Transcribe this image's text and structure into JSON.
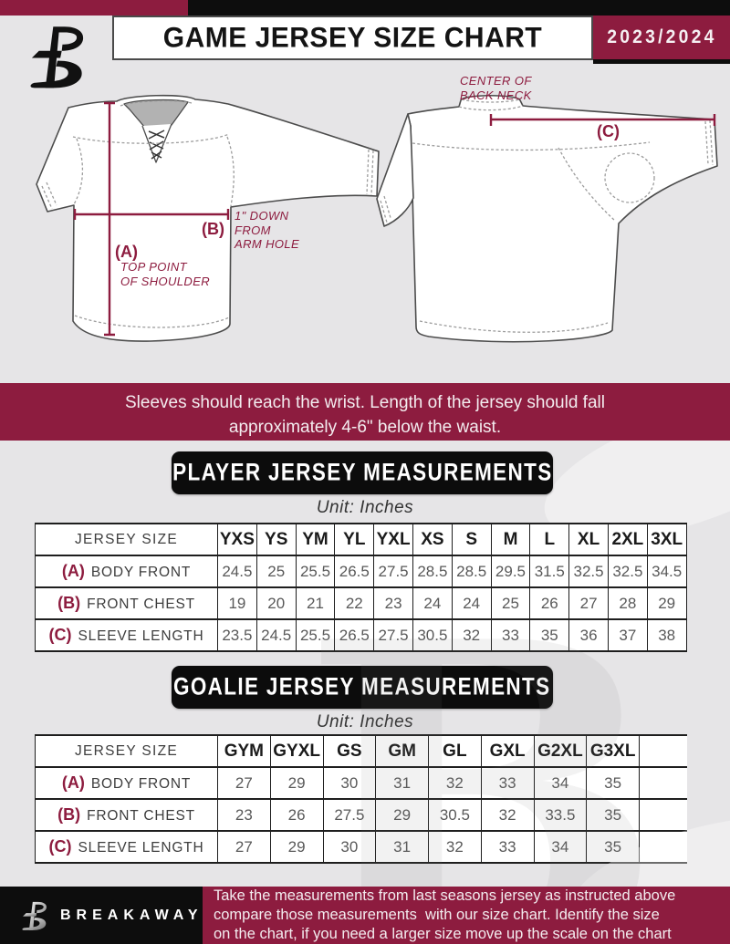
{
  "header": {
    "title": "GAME JERSEY SIZE CHART",
    "season": "2023/2024",
    "logo_icon": "breakaway-b-logo"
  },
  "diagram": {
    "front": {
      "label_a": "(A)",
      "note_a": "TOP POINT\nOF SHOULDER",
      "label_b": "(B)",
      "note_b": "1\" DOWN\nFROM\nARM HOLE"
    },
    "back": {
      "label_c": "(C)",
      "note_c": "CENTER OF\nBACK NECK"
    }
  },
  "notice": "Sleeves should reach the wrist. Length of the jersey should fall\napproximately 4-6\" below the waist.",
  "player_section": {
    "title": "PLAYER JERSEY MEASUREMENTS",
    "unit": "Unit: Inches",
    "table": {
      "header_label": "JERSEY SIZE",
      "sizes": [
        "YXS",
        "YS",
        "YM",
        "YL",
        "YXL",
        "XS",
        "S",
        "M",
        "L",
        "XL",
        "2XL",
        "3XL"
      ],
      "trailing_blank": false,
      "rows": [
        {
          "key": "(A)",
          "label": "BODY FRONT",
          "values": [
            "24.5",
            "25",
            "25.5",
            "26.5",
            "27.5",
            "28.5",
            "28.5",
            "29.5",
            "31.5",
            "32.5",
            "32.5",
            "34.5"
          ]
        },
        {
          "key": "(B)",
          "label": "FRONT CHEST",
          "values": [
            "19",
            "20",
            "21",
            "22",
            "23",
            "24",
            "24",
            "25",
            "26",
            "27",
            "28",
            "29"
          ]
        },
        {
          "key": "(C)",
          "label": "SLEEVE LENGTH",
          "values": [
            "23.5",
            "24.5",
            "25.5",
            "26.5",
            "27.5",
            "30.5",
            "32",
            "33",
            "35",
            "36",
            "37",
            "38"
          ]
        }
      ]
    }
  },
  "goalie_section": {
    "title": "GOALIE JERSEY MEASUREMENTS",
    "unit": "Unit: Inches",
    "table": {
      "header_label": "JERSEY SIZE",
      "sizes": [
        "GYM",
        "GYXL",
        "GS",
        "GM",
        "GL",
        "GXL",
        "G2XL",
        "G3XL"
      ],
      "trailing_blank": true,
      "rows": [
        {
          "key": "(A)",
          "label": "BODY FRONT",
          "values": [
            "27",
            "29",
            "30",
            "31",
            "32",
            "33",
            "34",
            "35"
          ]
        },
        {
          "key": "(B)",
          "label": "FRONT CHEST",
          "values": [
            "23",
            "26",
            "27.5",
            "29",
            "30.5",
            "32",
            "33.5",
            "35"
          ]
        },
        {
          "key": "(C)",
          "label": "SLEEVE LENGTH",
          "values": [
            "27",
            "29",
            "30",
            "31",
            "32",
            "33",
            "34",
            "35"
          ]
        }
      ]
    }
  },
  "footer": {
    "brand": "BREAKAWAY",
    "note": "Take the measurements from last seasons jersey as instructed above\ncompare those measurements  with our size chart. Identify the size\non the chart, if you need a larger size move up the scale on the chart"
  },
  "colors": {
    "maroon": "#8d1c3f",
    "black": "#0d0d0d",
    "background": "#e6e5e7",
    "table_line": "#1e1e1e",
    "value_text": "#595959"
  }
}
